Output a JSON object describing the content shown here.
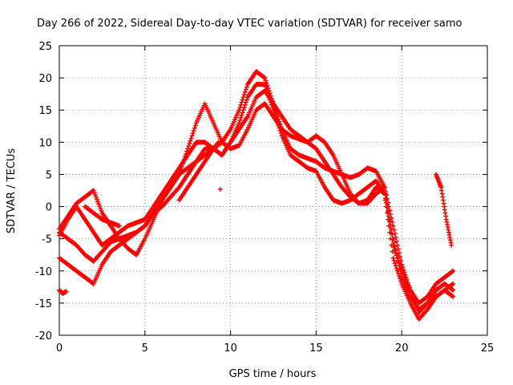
{
  "chart_data": {
    "type": "scatter",
    "title": "Day 266 of 2022, Sidereal Day-to-day VTEC variation (SDTVAR) for receiver samo",
    "xlabel": "GPS time / hours",
    "ylabel": "SDTVAR / TECUs",
    "xlim": [
      0,
      25
    ],
    "ylim": [
      -20,
      25
    ],
    "xticks": [
      "0",
      "5",
      "10",
      "15",
      "20",
      "25"
    ],
    "yticks": [
      "-20",
      "-15",
      "-10",
      "-5",
      "0",
      "5",
      "10",
      "15",
      "20",
      "25"
    ],
    "grid": true,
    "marker": "+",
    "color": "#ff0000",
    "series": [
      {
        "name": "trace-1",
        "x": [
          0.0,
          0.5,
          1.0,
          1.5,
          2.0,
          2.5,
          3.0,
          3.5,
          4.0,
          4.5,
          5.0,
          5.5,
          6.0,
          6.5,
          7.0,
          7.5,
          8.0,
          8.5,
          9.0,
          9.5,
          10.0,
          10.5,
          11.0,
          11.5,
          12.0,
          12.5,
          13.0,
          13.5,
          14.0,
          14.5,
          15.0,
          15.5,
          16.0,
          16.5,
          17.0,
          17.5,
          18.0,
          18.5,
          19.0,
          19.5,
          20.0,
          20.5,
          21.0,
          21.5,
          22.0,
          22.5,
          23.0
        ],
        "y": [
          -4.5,
          -2,
          0,
          -2,
          -4,
          -6,
          -5,
          -4,
          -3,
          -2.5,
          -2,
          0,
          2,
          4,
          6,
          8,
          10,
          10,
          9,
          8,
          10,
          13,
          17,
          19,
          19,
          15,
          11,
          8,
          7,
          6,
          5.5,
          3,
          1,
          0.5,
          1,
          2,
          3,
          4,
          2,
          -8,
          -12,
          -15,
          -17.5,
          -16,
          -14,
          -13,
          -12
        ]
      },
      {
        "name": "trace-2",
        "x": [
          0.0,
          0.5,
          1.0,
          1.5,
          2.0,
          2.5,
          3.0,
          3.5,
          4.0,
          4.5,
          5.0,
          5.5,
          6.0,
          6.5,
          7.0,
          7.5,
          8.0,
          8.5,
          9.0,
          9.5,
          10.0,
          10.5,
          11.0,
          11.5,
          12.0,
          12.5,
          13.0,
          13.5,
          14.0,
          14.5,
          15.0,
          15.5,
          16.0,
          16.5,
          17.0,
          17.5,
          18.0,
          18.5,
          19.0,
          19.5,
          20.0,
          20.5,
          21.0,
          21.5,
          22.0,
          22.5,
          23.0
        ],
        "y": [
          -3.5,
          -1.5,
          0.5,
          1.5,
          2.5,
          -1,
          -3,
          -5,
          -6.5,
          -7.5,
          -5,
          -2,
          1,
          3,
          5,
          6,
          7,
          8,
          9,
          10,
          12,
          15,
          19,
          21,
          20,
          16,
          12,
          9,
          8,
          7.5,
          7,
          6,
          5.5,
          5,
          4.5,
          5,
          6,
          5.5,
          3,
          -6,
          -10,
          -13,
          -15,
          -14,
          -12,
          -11,
          -10
        ]
      },
      {
        "name": "trace-3",
        "x": [
          0.0,
          0.5,
          1.0,
          1.5,
          2.0,
          2.5,
          3.0,
          3.5,
          4.0,
          4.5,
          5.0,
          5.5,
          6.0,
          6.5,
          7.0,
          7.5,
          8.0,
          8.5,
          9.0,
          9.5,
          10.0,
          10.5,
          11.0,
          11.5,
          12.0,
          12.5,
          13.0,
          13.5,
          14.0,
          14.5,
          15.0,
          15.5,
          16.0,
          16.5,
          17.0,
          17.5,
          18.0,
          18.5,
          19.0,
          19.5,
          20.0,
          20.5,
          21.0,
          21.5,
          22.0,
          22.5,
          23.0
        ],
        "y": [
          -4,
          -5,
          -6,
          -7.5,
          -8.5,
          -7,
          -5.5,
          -5,
          -4.5,
          -4,
          -3,
          -1,
          1,
          3,
          5,
          9,
          13,
          16,
          13,
          10,
          9,
          9.5,
          12,
          15,
          16,
          14,
          12,
          11,
          10.5,
          10,
          11,
          10,
          8,
          5,
          2,
          0.5,
          0.5,
          2,
          3,
          -3,
          -9,
          -13,
          -16.5,
          -15,
          -13,
          -12,
          -13
        ]
      },
      {
        "name": "trace-4",
        "x": [
          0.0,
          0.5,
          1.0,
          1.5,
          2.0,
          2.5,
          3.0,
          3.5,
          4.0,
          4.5,
          5.0,
          5.5,
          6.0,
          6.5,
          7.0,
          7.5,
          8.0,
          8.5,
          9.0,
          9.5,
          10.0,
          10.5,
          11.0,
          11.5,
          12.0,
          12.5,
          13.0,
          13.5,
          14.0,
          14.5,
          15.0,
          15.5,
          16.0,
          16.5,
          17.0,
          17.5,
          18.0,
          18.5,
          19.0,
          19.5,
          20.0,
          20.5,
          21.0,
          21.5,
          22.0,
          22.5,
          23.0
        ],
        "y": [
          -8,
          -9,
          -10,
          -11,
          -12,
          -9,
          -7,
          -6,
          -5,
          -4,
          -3,
          -1,
          0,
          1.5,
          3,
          5,
          7,
          9,
          9,
          8,
          10,
          12,
          14,
          17,
          18,
          16,
          14,
          12,
          11,
          10,
          9,
          7,
          5,
          3,
          1.5,
          0.5,
          1,
          3,
          2,
          -5,
          -11,
          -14,
          -16,
          -15,
          -14,
          -13,
          -14
        ]
      },
      {
        "name": "trace-5",
        "x": [
          1.5,
          2.0,
          2.5,
          3.0,
          3.5
        ],
        "y": [
          0,
          -1,
          -2,
          -2.5,
          -3
        ]
      },
      {
        "name": "trace-6",
        "x": [
          7.0,
          7.5,
          8.0,
          8.5,
          9.0,
          9.3
        ],
        "y": [
          1,
          3,
          5,
          7,
          9,
          10
        ]
      },
      {
        "name": "trace-7",
        "x": [
          9.4
        ],
        "y": [
          2.7
        ]
      },
      {
        "name": "trace-8",
        "x": [
          0.0,
          0.2,
          0.4
        ],
        "y": [
          -13,
          -13.5,
          -13.2
        ]
      },
      {
        "name": "trace-9",
        "x": [
          22.0,
          22.3,
          22.6,
          22.9
        ],
        "y": [
          5,
          3,
          -2,
          -6
        ]
      }
    ]
  }
}
